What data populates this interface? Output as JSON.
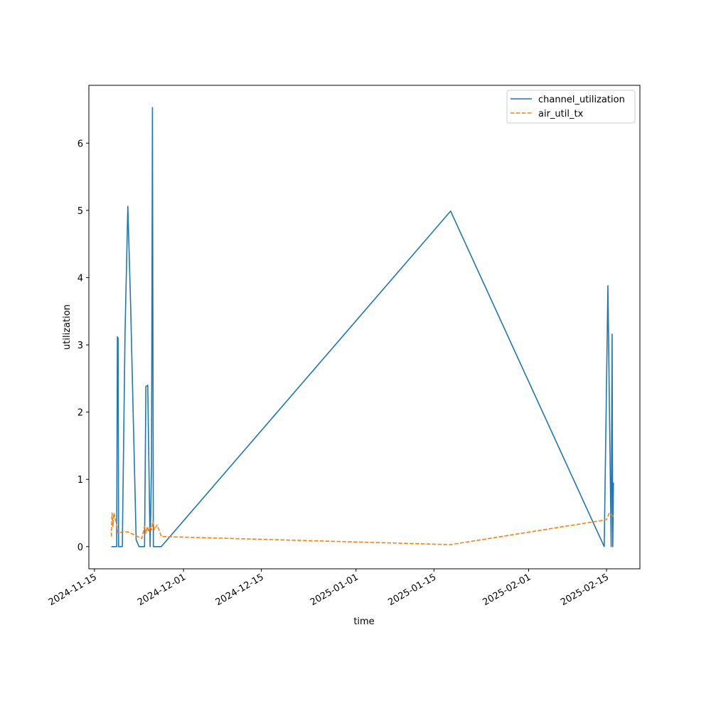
{
  "chart_data": {
    "type": "line",
    "title": "",
    "xlabel": "time",
    "ylabel": "utilization",
    "x_type": "date",
    "xlim": [
      "2024-11-14T00:00",
      "2025-02-21T00:00"
    ],
    "ylim": [
      -0.33,
      6.86
    ],
    "x_ticks": [
      "2024-11-15",
      "2024-12-01",
      "2024-12-15",
      "2025-01-01",
      "2025-01-15",
      "2025-02-01",
      "2025-02-15"
    ],
    "y_ticks": [
      0,
      1,
      2,
      3,
      4,
      5,
      6
    ],
    "legend_position": "top-right",
    "grid": false,
    "series": [
      {
        "name": "channel_utilization",
        "color": "#1f77b4",
        "dash": "solid",
        "points": [
          [
            "2024-11-18T01:00",
            0
          ],
          [
            "2024-11-19T00:00",
            0
          ],
          [
            "2024-11-19T03:00",
            3.12
          ],
          [
            "2024-11-19T06:00",
            3.1
          ],
          [
            "2024-11-19T08:00",
            0
          ],
          [
            "2024-11-20T00:00",
            0
          ],
          [
            "2024-11-20T12:00",
            3.2
          ],
          [
            "2024-11-21T00:00",
            5.06
          ],
          [
            "2024-11-21T12:00",
            3.6
          ],
          [
            "2024-11-22T12:00",
            0.1
          ],
          [
            "2024-11-23T00:00",
            0
          ],
          [
            "2024-11-24T00:00",
            0
          ],
          [
            "2024-11-24T06:00",
            2.38
          ],
          [
            "2024-11-24T14:00",
            2.4
          ],
          [
            "2024-11-25T00:00",
            0
          ],
          [
            "2024-11-25T06:00",
            1.2
          ],
          [
            "2024-11-25T10:00",
            6.53
          ],
          [
            "2024-11-25T14:00",
            0
          ],
          [
            "2024-11-27T00:00",
            0
          ],
          [
            "2025-01-18T00:00",
            4.99
          ],
          [
            "2025-02-14T14:00",
            0
          ],
          [
            "2025-02-15T06:00",
            3.88
          ],
          [
            "2025-02-15T20:00",
            0
          ],
          [
            "2025-02-16T00:00",
            3.16
          ],
          [
            "2025-02-16T03:00",
            0
          ],
          [
            "2025-02-16T06:00",
            0.95
          ]
        ]
      },
      {
        "name": "air_util_tx",
        "color": "#ff7f0e",
        "dash": "dashed",
        "points": [
          [
            "2024-11-18T01:00",
            0.15
          ],
          [
            "2024-11-18T04:00",
            0.5
          ],
          [
            "2024-11-18T08:00",
            0.3
          ],
          [
            "2024-11-18T12:00",
            0.5
          ],
          [
            "2024-11-18T18:00",
            0.4
          ],
          [
            "2024-11-19T00:00",
            0.35
          ],
          [
            "2024-11-19T06:00",
            0.2
          ],
          [
            "2024-11-20T00:00",
            0.22
          ],
          [
            "2024-11-21T00:00",
            0.22
          ],
          [
            "2024-11-23T12:00",
            0.12
          ],
          [
            "2024-11-24T00:00",
            0.3
          ],
          [
            "2024-11-24T06:00",
            0.2
          ],
          [
            "2024-11-24T12:00",
            0.3
          ],
          [
            "2024-11-24T18:00",
            0.22
          ],
          [
            "2024-11-25T00:00",
            0.3
          ],
          [
            "2024-11-25T06:00",
            0.25
          ],
          [
            "2024-11-25T12:00",
            0.38
          ],
          [
            "2024-11-25T18:00",
            0.25
          ],
          [
            "2024-11-26T06:00",
            0.32
          ],
          [
            "2024-11-26T18:00",
            0.22
          ],
          [
            "2024-11-27T00:00",
            0.15
          ],
          [
            "2025-01-18T00:00",
            0.03
          ],
          [
            "2025-02-15T00:00",
            0.4
          ],
          [
            "2025-02-15T12:00",
            0.5
          ],
          [
            "2025-02-16T06:00",
            0.45
          ]
        ]
      }
    ]
  }
}
